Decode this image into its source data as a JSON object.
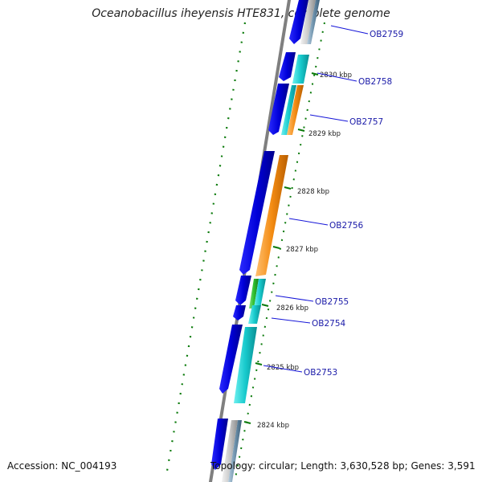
{
  "title": "Oceanobacillus iheyensis HTE831, complete genome",
  "footer": {
    "accession": "Accession: NC_004193",
    "topology": "Topology: circular; Length: 3,630,528 bp; Genes: 3,591"
  },
  "colors": {
    "backbone": "#7f7f7f",
    "blue_gene": "#0a0ae6",
    "cyan_gene": "#1fd1d4",
    "orange_gene": "#f38b12",
    "green_gene": "#2fbf2f",
    "steel_gene": "#6f93ad",
    "grey_gene": "#c9c9c9",
    "tick": "#0a7a0a",
    "label_line": "#1515d8"
  },
  "scale": {
    "ticks": [
      {
        "kbp": 2830,
        "label": "2830 kbp"
      },
      {
        "kbp": 2829,
        "label": "2829 kbp"
      },
      {
        "kbp": 2828,
        "label": "2828 kbp"
      },
      {
        "kbp": 2827,
        "label": "2827 kbp"
      },
      {
        "kbp": 2826,
        "label": "2826 kbp"
      },
      {
        "kbp": 2825,
        "label": "2825 kbp"
      },
      {
        "kbp": 2824,
        "label": "2824 kbp"
      }
    ]
  },
  "gene_labels": [
    {
      "id": "OB2759"
    },
    {
      "id": "OB2758"
    },
    {
      "id": "OB2757"
    },
    {
      "id": "OB2756"
    },
    {
      "id": "OB2755"
    },
    {
      "id": "OB2754"
    },
    {
      "id": "OB2753"
    }
  ]
}
